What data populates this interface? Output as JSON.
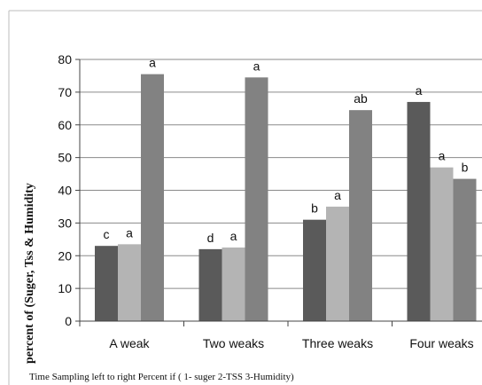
{
  "chart_data": {
    "type": "bar",
    "title": "",
    "xlabel": "Time Sampling left to right Percent if ( 1- suger 2-TSS 3-Humidity)",
    "ylabel": "percent of (Suger, Tss & Humidity",
    "ylim": [
      0,
      80
    ],
    "yticks": [
      0,
      10,
      20,
      30,
      40,
      50,
      60,
      70,
      80
    ],
    "grid": true,
    "legend": "none",
    "categories": [
      "A weak",
      "Two weaks",
      "Three weaks",
      "Four weaks"
    ],
    "series": [
      {
        "values": [
          23,
          22,
          31,
          67
        ],
        "color": "#5a5a5a",
        "labels": [
          "c",
          "d",
          "b",
          "a"
        ]
      },
      {
        "values": [
          23.5,
          22.5,
          35,
          47
        ],
        "color": "#b4b4b4",
        "labels": [
          "a",
          "a",
          "a",
          "a"
        ]
      },
      {
        "values": [
          75.5,
          74.5,
          64.5,
          43.5
        ],
        "color": "#828282",
        "labels": [
          "a",
          "a",
          "ab",
          "b"
        ]
      }
    ]
  }
}
